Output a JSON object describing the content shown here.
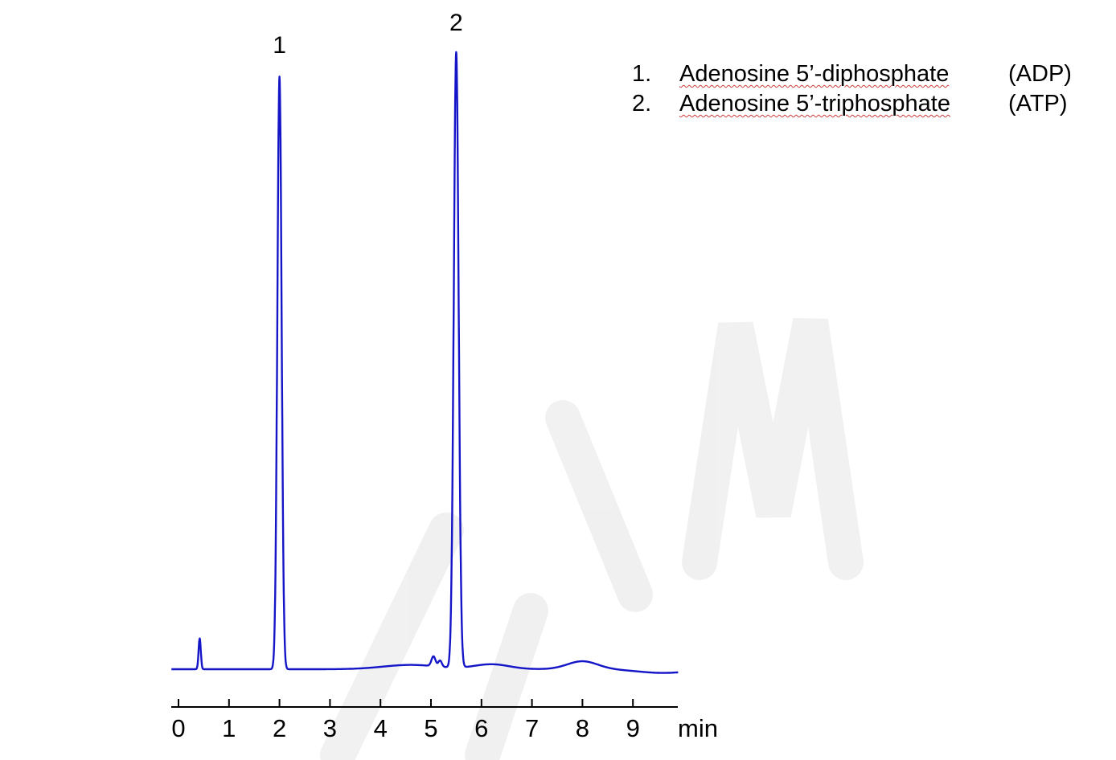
{
  "figure": {
    "kind": "HPLC chromatogram"
  },
  "legend": {
    "items": [
      {
        "num": "1.",
        "name": "Adenosine 5’-diphosphate",
        "abbrev": "(ADP)"
      },
      {
        "num": "2.",
        "name": "Adenosine 5’-triphosphate",
        "abbrev": "(ATP)"
      }
    ]
  },
  "chart_data": {
    "type": "line",
    "title": "",
    "xlabel": "min",
    "ylabel": "",
    "x_ticks": [
      0,
      1,
      2,
      3,
      4,
      5,
      6,
      7,
      8,
      9
    ],
    "x_start": -0.14,
    "x_end": 9.9,
    "grid": false,
    "line_color": "#1515c8",
    "axis_color": "#000000",
    "watermark_color": "#ededed",
    "peaks": [
      {
        "label": "1",
        "rt_min": 2.0,
        "height_rel": 96.3,
        "compound": "Adenosine 5’-diphosphate (ADP)"
      },
      {
        "label": "2",
        "rt_min": 5.5,
        "height_rel": 100,
        "compound": "Adenosine 5’-triphosphate (ATP)"
      }
    ],
    "minor_features": [
      {
        "rt_min": 0.42,
        "height_rel": 5.0,
        "note": "small unlabeled injection peak"
      },
      {
        "rt_min": 8.0,
        "height_rel": 1.3,
        "note": "broad baseline hump"
      }
    ],
    "trace_model": {
      "height_unit": "percent of tallest peak",
      "components": [
        {
          "c": 0.42,
          "h": 5.0,
          "w": 0.022
        },
        {
          "c": 2.0,
          "h": 96.3,
          "w": 0.042
        },
        {
          "c": 4.6,
          "h": 0.7,
          "w": 0.55
        },
        {
          "c": 5.05,
          "h": 1.6,
          "w": 0.04
        },
        {
          "c": 5.18,
          "h": 1.0,
          "w": 0.035
        },
        {
          "c": 5.5,
          "h": 100,
          "w": 0.048
        },
        {
          "c": 6.2,
          "h": 0.8,
          "w": 0.35
        },
        {
          "c": 8.0,
          "h": 1.3,
          "w": 0.3
        },
        {
          "c": 9.6,
          "h": -0.6,
          "w": 0.5
        }
      ]
    }
  }
}
